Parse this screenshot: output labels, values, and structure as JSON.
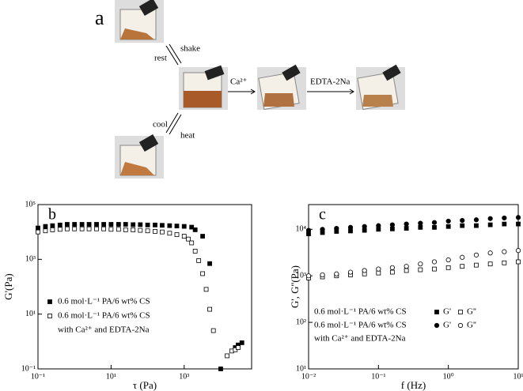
{
  "figure": {
    "panel_a": {
      "label": "a",
      "rest": "rest",
      "shake": "shake",
      "cool": "cool",
      "heat": "heat",
      "ca": "Ca²⁺",
      "edta": "EDTA-2Na"
    }
  },
  "chart_data": [
    {
      "type": "scatter",
      "panel_label": "b",
      "xlabel": "τ (Pa)",
      "ylabel": "G'(Pa)",
      "log_x": true,
      "log_y": true,
      "xlim": [
        0.1,
        70000
      ],
      "ylim": [
        0.1,
        100000
      ],
      "xticks": [
        {
          "value": 0.1,
          "label": "10⁻¹"
        },
        {
          "value": 10,
          "label": "10¹"
        },
        {
          "value": 1000,
          "label": "10³"
        }
      ],
      "yticks": [
        {
          "value": 0.1,
          "label": "10⁻¹"
        },
        {
          "value": 10,
          "label": "10¹"
        },
        {
          "value": 1000,
          "label": "10³"
        },
        {
          "value": 100000,
          "label": "10⁵"
        }
      ],
      "series": [
        {
          "name": "0.6 mol·L⁻¹ PA/6 wt% CS",
          "marker": "square",
          "filled": true,
          "color": "#000000",
          "x": [
            0.1,
            0.16,
            0.25,
            0.4,
            0.63,
            1,
            1.6,
            2.5,
            4,
            6.3,
            10,
            16,
            25,
            40,
            63,
            100,
            160,
            250,
            400,
            630,
            1000,
            1600,
            2000,
            3200,
            5000,
            10000,
            25000,
            30000,
            38000
          ],
          "values": [
            14000,
            16000,
            17000,
            18000,
            19000,
            19000,
            19000,
            19000,
            19000,
            19000,
            19000,
            19000,
            19000,
            18500,
            18500,
            18000,
            18000,
            17500,
            17000,
            16500,
            16000,
            15000,
            12000,
            7000,
            700,
            0.1,
            0.6,
            0.75,
            0.9
          ]
        },
        {
          "name": "0.6 mol·L⁻¹ PA/6 wt% CS",
          "note": "with Ca²⁺ and EDTA-2Na",
          "marker": "square",
          "filled": false,
          "color": "#000000",
          "x": [
            0.1,
            0.16,
            0.25,
            0.4,
            0.63,
            1,
            1.6,
            2.5,
            4,
            6.3,
            10,
            16,
            25,
            40,
            63,
            100,
            160,
            250,
            400,
            630,
            1000,
            1300,
            1600,
            2000,
            2500,
            3200,
            4000,
            5000,
            6300,
            15000,
            20000,
            25000,
            30000
          ],
          "values": [
            10000,
            11000,
            12000,
            12500,
            13000,
            13000,
            13000,
            13000,
            13000,
            13000,
            12500,
            12500,
            12000,
            12000,
            11500,
            11000,
            10500,
            10000,
            9000,
            8000,
            7000,
            5500,
            4000,
            2000,
            900,
            300,
            80,
            15,
            2.5,
            0.3,
            0.45,
            0.5,
            0.6
          ]
        }
      ]
    },
    {
      "type": "scatter",
      "panel_label": "c",
      "xlabel": "f (Hz)",
      "ylabel": "G', G''(Pa)",
      "log_x": true,
      "log_y": true,
      "xlim": [
        0.01,
        10
      ],
      "ylim": [
        10,
        34000
      ],
      "xticks": [
        {
          "value": 0.01,
          "label": "10⁻²"
        },
        {
          "value": 0.1,
          "label": "10⁻¹"
        },
        {
          "value": 1,
          "label": "10⁰"
        },
        {
          "value": 10,
          "label": "10¹"
        }
      ],
      "yticks": [
        {
          "value": 10,
          "label": "10¹"
        },
        {
          "value": 100,
          "label": "10²"
        },
        {
          "value": 1000,
          "label": "10³"
        },
        {
          "value": 10000,
          "label": "10⁴"
        }
      ],
      "x": [
        0.01,
        0.0158,
        0.0251,
        0.0398,
        0.0631,
        0.1,
        0.158,
        0.251,
        0.398,
        0.631,
        1,
        1.58,
        2.51,
        3.98,
        6.31,
        10
      ],
      "groups": [
        {
          "label": "0.6 mol·L⁻¹ PA/6 wt% CS",
          "series": [
            {
              "name": "G'",
              "marker": "square",
              "filled": true,
              "color": "#000000",
              "values": [
                8000,
                8500,
                9000,
                9200,
                9500,
                10000,
                10200,
                10500,
                11000,
                11000,
                11500,
                12000,
                12000,
                12500,
                13000,
                13000
              ]
            },
            {
              "name": "G''",
              "marker": "square",
              "filled": false,
              "color": "#000000",
              "values": [
                900,
                950,
                1000,
                1050,
                1100,
                1150,
                1200,
                1300,
                1350,
                1400,
                1500,
                1600,
                1700,
                1800,
                1900,
                2000
              ]
            }
          ]
        },
        {
          "label": "0.6 mol·L⁻¹ PA/6 wt% CS",
          "note": "with Ca²⁺ and EDTA-2Na",
          "series": [
            {
              "name": "G'",
              "marker": "circle",
              "filled": true,
              "color": "#000000",
              "values": [
                9500,
                10000,
                10500,
                11000,
                11500,
                12000,
                12500,
                13000,
                13500,
                14000,
                15000,
                15500,
                16000,
                17000,
                17500,
                18000
              ]
            },
            {
              "name": "G''",
              "marker": "circle",
              "filled": false,
              "color": "#000000",
              "values": [
                1000,
                1050,
                1100,
                1200,
                1300,
                1400,
                1500,
                1600,
                1800,
                2000,
                2200,
                2500,
                2800,
                3100,
                3300,
                3500
              ]
            }
          ]
        }
      ]
    }
  ]
}
